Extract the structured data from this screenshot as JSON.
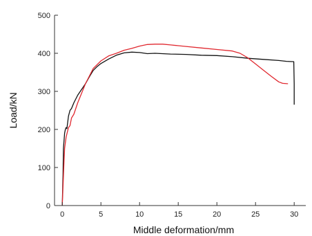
{
  "chart_data": {
    "type": "line",
    "xlabel": "Middle deformation/mm",
    "ylabel": "Load/kN",
    "xlim": [
      -1,
      31.5
    ],
    "ylim": [
      0,
      500
    ],
    "x_ticks": [
      0,
      5,
      10,
      15,
      20,
      25,
      30
    ],
    "y_ticks": [
      0,
      100,
      200,
      300,
      400,
      500
    ],
    "x_tick_labels": [
      "0",
      "5",
      "10",
      "15",
      "20",
      "25",
      "30"
    ],
    "y_tick_labels": [
      "0",
      "100",
      "200",
      "300",
      "400",
      "500"
    ],
    "grid": false,
    "series": [
      {
        "color": "#111111",
        "x": [
          0,
          0.1,
          0.15,
          0.3,
          0.4,
          0.5,
          0.6,
          0.8,
          1.0,
          1.2,
          1.5,
          2.0,
          2.5,
          3.0,
          3.5,
          4.0,
          4.5,
          5.0,
          6.0,
          7.0,
          8.0,
          9.0,
          10.0,
          11.0,
          12.0,
          14.0,
          16.0,
          18.0,
          20.0,
          22.0,
          24.0,
          26.0,
          28.0,
          29.0,
          29.95,
          30.0,
          30.0
        ],
        "y": [
          0,
          80,
          150,
          190,
          200,
          205,
          202,
          235,
          250,
          255,
          270,
          290,
          305,
          320,
          338,
          355,
          365,
          373,
          385,
          395,
          401,
          403,
          402,
          399,
          400,
          398,
          397,
          395,
          394,
          391,
          387,
          384,
          381,
          379,
          378,
          320,
          265
        ]
      },
      {
        "color": "#e0282f",
        "x": [
          0,
          0.2,
          0.3,
          0.5,
          0.8,
          1.0,
          1.2,
          1.5,
          2.0,
          2.5,
          3.0,
          3.5,
          4.0,
          5.0,
          6.0,
          7.0,
          8.0,
          9.0,
          10.0,
          11.0,
          12.0,
          13.0,
          14.0,
          15.0,
          16.0,
          18.0,
          20.0,
          22.0,
          23.0,
          24.0,
          25.0,
          26.0,
          27.0,
          28.0,
          28.5,
          29.2
        ],
        "y": [
          0,
          100,
          150,
          180,
          205,
          210,
          230,
          240,
          270,
          295,
          320,
          340,
          360,
          380,
          393,
          400,
          408,
          413,
          419,
          423,
          424,
          424,
          422,
          420,
          418,
          414,
          410,
          406,
          400,
          388,
          372,
          356,
          340,
          325,
          321,
          320
        ]
      }
    ]
  }
}
